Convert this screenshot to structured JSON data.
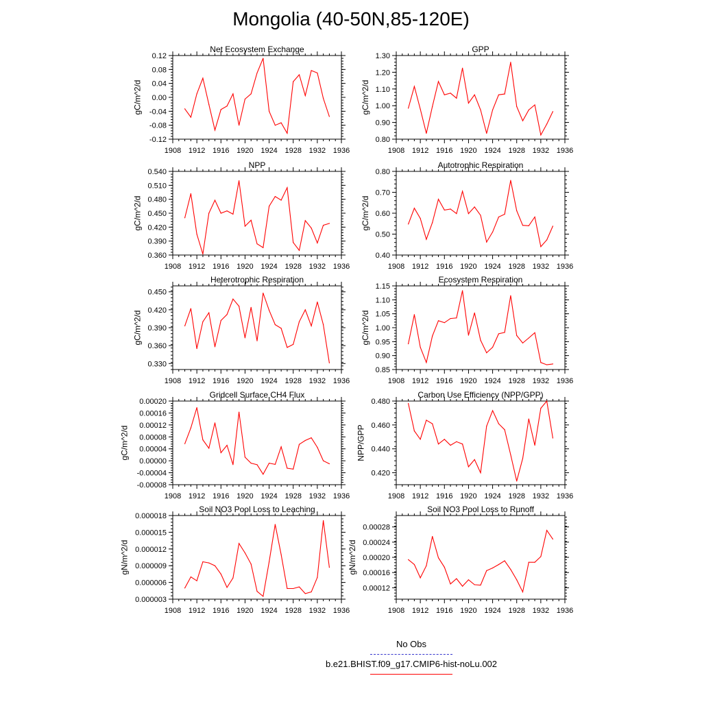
{
  "title": "Mongolia (40-50N,85-120E)",
  "colors": {
    "series": "#ff0000",
    "obs": "#3333cc",
    "axis": "#000000"
  },
  "legend": {
    "obs_label": "No Obs",
    "model_label": "b.e21.BHIST.f09_g17.CMIP6-hist-noLu.002"
  },
  "chart_data": [
    {
      "type": "line",
      "title": "Net Ecosystem Exchange",
      "ylabel": "gC/m^2/d",
      "xlim": [
        1908,
        1936
      ],
      "xticks": [
        "1908",
        "1912",
        "1916",
        "1920",
        "1924",
        "1928",
        "1932",
        "1936"
      ],
      "ylim": [
        -0.12,
        0.12
      ],
      "yticks": [
        "-0.12",
        "-0.08",
        "-0.04",
        "0.00",
        "0.04",
        "0.08",
        "0.12"
      ],
      "x": [
        1910,
        1911,
        1912,
        1913,
        1914,
        1915,
        1916,
        1917,
        1918,
        1919,
        1920,
        1921,
        1922,
        1923,
        1924,
        1925,
        1926,
        1927,
        1928,
        1929,
        1930,
        1931,
        1932,
        1933,
        1934
      ],
      "values": [
        -0.033,
        -0.057,
        0.01,
        0.055,
        -0.02,
        -0.094,
        -0.035,
        -0.025,
        0.01,
        -0.08,
        -0.005,
        0.01,
        0.07,
        0.112,
        -0.04,
        -0.08,
        -0.073,
        -0.103,
        0.045,
        0.065,
        0.005,
        0.077,
        0.07,
        -0.003,
        -0.055
      ]
    },
    {
      "type": "line",
      "title": "GPP",
      "ylabel": "gC/m^2/d",
      "xlim": [
        1908,
        1936
      ],
      "xticks": [
        "1908",
        "1912",
        "1916",
        "1920",
        "1924",
        "1928",
        "1932",
        "1936"
      ],
      "ylim": [
        0.8,
        1.3
      ],
      "yticks": [
        "0.80",
        "0.90",
        "1.00",
        "1.10",
        "1.20",
        "1.30"
      ],
      "x": [
        1910,
        1911,
        1912,
        1913,
        1914,
        1915,
        1916,
        1917,
        1918,
        1919,
        1920,
        1921,
        1922,
        1923,
        1924,
        1925,
        1926,
        1927,
        1928,
        1929,
        1930,
        1931,
        1932,
        1933,
        1934
      ],
      "values": [
        0.985,
        1.115,
        0.98,
        0.835,
        0.995,
        1.145,
        1.065,
        1.075,
        1.045,
        1.225,
        1.015,
        1.065,
        0.975,
        0.835,
        0.975,
        1.065,
        1.07,
        1.26,
        0.995,
        0.91,
        0.975,
        1.005,
        0.825,
        0.89,
        0.965
      ]
    },
    {
      "type": "line",
      "title": "NPP",
      "ylabel": "gC/m^2/d",
      "xlim": [
        1908,
        1936
      ],
      "xticks": [
        "1908",
        "1912",
        "1916",
        "1920",
        "1924",
        "1928",
        "1932",
        "1936"
      ],
      "ylim": [
        0.36,
        0.54
      ],
      "yticks": [
        "0.360",
        "0.390",
        "0.420",
        "0.450",
        "0.480",
        "0.510",
        "0.540"
      ],
      "x": [
        1910,
        1911,
        1912,
        1913,
        1914,
        1915,
        1916,
        1917,
        1918,
        1919,
        1920,
        1921,
        1922,
        1923,
        1924,
        1925,
        1926,
        1927,
        1928,
        1929,
        1930,
        1931,
        1932,
        1933,
        1934
      ],
      "values": [
        0.44,
        0.492,
        0.405,
        0.362,
        0.45,
        0.478,
        0.45,
        0.455,
        0.448,
        0.52,
        0.422,
        0.435,
        0.384,
        0.376,
        0.465,
        0.486,
        0.478,
        0.505,
        0.387,
        0.37,
        0.434,
        0.418,
        0.386,
        0.424,
        0.428
      ]
    },
    {
      "type": "line",
      "title": "Autotrophic Respiration",
      "ylabel": "gC/m^2/d",
      "xlim": [
        1908,
        1936
      ],
      "xticks": [
        "1908",
        "1912",
        "1916",
        "1920",
        "1924",
        "1928",
        "1932",
        "1936"
      ],
      "ylim": [
        0.4,
        0.8
      ],
      "yticks": [
        "0.40",
        "0.50",
        "0.60",
        "0.70",
        "0.80"
      ],
      "x": [
        1910,
        1911,
        1912,
        1913,
        1914,
        1915,
        1916,
        1917,
        1918,
        1919,
        1920,
        1921,
        1922,
        1923,
        1924,
        1925,
        1926,
        1927,
        1928,
        1929,
        1930,
        1931,
        1932,
        1933,
        1934
      ],
      "values": [
        0.548,
        0.624,
        0.575,
        0.475,
        0.555,
        0.667,
        0.615,
        0.62,
        0.598,
        0.705,
        0.598,
        0.63,
        0.59,
        0.462,
        0.51,
        0.582,
        0.595,
        0.757,
        0.612,
        0.542,
        0.54,
        0.582,
        0.44,
        0.472,
        0.538
      ]
    },
    {
      "type": "line",
      "title": "Heterotrophic Respiration",
      "ylabel": "gC/m^2/d",
      "xlim": [
        1908,
        1936
      ],
      "xticks": [
        "1908",
        "1912",
        "1916",
        "1920",
        "1924",
        "1928",
        "1932",
        "1936"
      ],
      "ylim": [
        0.32,
        0.46
      ],
      "yticks": [
        "0.330",
        "0.360",
        "0.390",
        "0.420",
        "0.450"
      ],
      "x": [
        1910,
        1911,
        1912,
        1913,
        1914,
        1915,
        1916,
        1917,
        1918,
        1919,
        1920,
        1921,
        1922,
        1923,
        1924,
        1925,
        1926,
        1927,
        1928,
        1929,
        1930,
        1931,
        1932,
        1933,
        1934
      ],
      "values": [
        0.393,
        0.422,
        0.355,
        0.4,
        0.415,
        0.358,
        0.402,
        0.412,
        0.438,
        0.426,
        0.373,
        0.424,
        0.368,
        0.448,
        0.419,
        0.395,
        0.389,
        0.357,
        0.362,
        0.4,
        0.42,
        0.393,
        0.433,
        0.395,
        0.331
      ]
    },
    {
      "type": "line",
      "title": "Ecosystem Respiration",
      "ylabel": "gC/m^2/d",
      "xlim": [
        1908,
        1936
      ],
      "xticks": [
        "1908",
        "1912",
        "1916",
        "1920",
        "1924",
        "1928",
        "1932",
        "1936"
      ],
      "ylim": [
        0.85,
        1.15
      ],
      "yticks": [
        "0.85",
        "0.90",
        "0.95",
        "1.00",
        "1.05",
        "1.10",
        "1.15"
      ],
      "x": [
        1910,
        1911,
        1912,
        1913,
        1914,
        1915,
        1916,
        1917,
        1918,
        1919,
        1920,
        1921,
        1922,
        1923,
        1924,
        1925,
        1926,
        1927,
        1928,
        1929,
        1930,
        1931,
        1932,
        1933,
        1934
      ],
      "values": [
        0.942,
        1.047,
        0.93,
        0.875,
        0.97,
        1.025,
        1.018,
        1.033,
        1.035,
        1.133,
        0.973,
        1.053,
        0.955,
        0.91,
        0.93,
        0.978,
        0.983,
        1.115,
        0.972,
        0.945,
        0.963,
        0.982,
        0.875,
        0.867,
        0.87
      ]
    },
    {
      "type": "line",
      "title": "Gridcell Surface CH4 Flux",
      "ylabel": "gC/m^2/d",
      "xlim": [
        1908,
        1936
      ],
      "xticks": [
        "1908",
        "1912",
        "1916",
        "1920",
        "1924",
        "1928",
        "1932",
        "1936"
      ],
      "ylim": [
        -8e-05,
        0.0002
      ],
      "yticks": [
        "-0.00008",
        "-0.00004",
        "0.00000",
        "0.00004",
        "0.00008",
        "0.00012",
        "0.00016",
        "0.00020"
      ],
      "x": [
        1910,
        1911,
        1912,
        1913,
        1914,
        1915,
        1916,
        1917,
        1918,
        1919,
        1920,
        1921,
        1922,
        1923,
        1924,
        1925,
        1926,
        1927,
        1928,
        1929,
        1930,
        1931,
        1932,
        1933,
        1934
      ],
      "values": [
        5.7e-05,
        0.00011,
        0.000178,
        7e-05,
        4.2e-05,
        0.000127,
        2.7e-05,
        5.2e-05,
        -1.3e-05,
        0.000163,
        1.2e-05,
        -8e-06,
        -1.3e-05,
        -4.5e-05,
        -8e-06,
        -1.2e-05,
        4.7e-05,
        -2.5e-05,
        -2.8e-05,
        5.5e-05,
        6.8e-05,
        7.7e-05,
        4.5e-05,
        0.0,
        -1e-05
      ]
    },
    {
      "type": "line",
      "title": "Carbon Use Efficiency (NPP/GPP)",
      "ylabel": "NPP/GPP",
      "xlim": [
        1908,
        1936
      ],
      "xticks": [
        "1908",
        "1912",
        "1916",
        "1920",
        "1924",
        "1928",
        "1932",
        "1936"
      ],
      "ylim": [
        0.41,
        0.48
      ],
      "yticks": [
        "0.420",
        "0.440",
        "0.460",
        "0.480"
      ],
      "x": [
        1910,
        1911,
        1912,
        1913,
        1914,
        1915,
        1916,
        1917,
        1918,
        1919,
        1920,
        1921,
        1922,
        1923,
        1924,
        1925,
        1926,
        1927,
        1928,
        1929,
        1930,
        1931,
        1932,
        1933,
        1934
      ],
      "values": [
        0.478,
        0.455,
        0.448,
        0.464,
        0.461,
        0.444,
        0.448,
        0.443,
        0.446,
        0.444,
        0.425,
        0.431,
        0.42,
        0.459,
        0.472,
        0.461,
        0.456,
        0.435,
        0.413,
        0.432,
        0.465,
        0.443,
        0.474,
        0.48,
        0.449
      ]
    },
    {
      "type": "line",
      "title": "Soil NO3 Pool Loss to Leaching",
      "ylabel": "gN/m^2/d",
      "xlim": [
        1908,
        1936
      ],
      "xticks": [
        "1908",
        "1912",
        "1916",
        "1920",
        "1924",
        "1928",
        "1932",
        "1936"
      ],
      "ylim": [
        3e-06,
        1.8e-05
      ],
      "yticks": [
        "0.000003",
        "0.000006",
        "0.000009",
        "0.000012",
        "0.000015",
        "0.000018"
      ],
      "x": [
        1910,
        1911,
        1912,
        1913,
        1914,
        1915,
        1916,
        1917,
        1918,
        1919,
        1920,
        1921,
        1922,
        1923,
        1924,
        1925,
        1926,
        1927,
        1928,
        1929,
        1930,
        1931,
        1932,
        1933,
        1934
      ],
      "values": [
        5e-06,
        7e-06,
        6.3e-06,
        9.7e-06,
        9.5e-06,
        9e-06,
        7.5e-06,
        5.1e-06,
        6.8e-06,
        1.3e-05,
        1.13e-05,
        9.3e-06,
        4.4e-06,
        3.5e-06,
        9.7e-06,
        1.64e-05,
        1.1e-05,
        4.9e-06,
        4.9e-06,
        5.2e-06,
        4e-06,
        4.3e-06,
        6.9e-06,
        1.71e-05,
        8.7e-06
      ]
    },
    {
      "type": "line",
      "title": "Soil NO3 Pool Loss to Runoff",
      "ylabel": "gN/m^2/d",
      "xlim": [
        1908,
        1936
      ],
      "xticks": [
        "1908",
        "1912",
        "1916",
        "1920",
        "1924",
        "1928",
        "1932",
        "1936"
      ],
      "ylim": [
        9e-05,
        0.00031
      ],
      "yticks": [
        "0.00012",
        "0.00016",
        "0.00020",
        "0.00024",
        "0.00028"
      ],
      "x": [
        1910,
        1911,
        1912,
        1913,
        1914,
        1915,
        1916,
        1917,
        1918,
        1919,
        1920,
        1921,
        1922,
        1923,
        1924,
        1925,
        1926,
        1927,
        1928,
        1929,
        1930,
        1931,
        1932,
        1933,
        1934
      ],
      "values": [
        0.000194,
        0.000181,
        0.000146,
        0.000178,
        0.000255,
        0.000199,
        0.000174,
        0.00013,
        0.000144,
        0.000124,
        0.000141,
        0.000128,
        0.000127,
        0.000165,
        0.000172,
        0.000181,
        0.000191,
        0.000168,
        0.000141,
        0.000109,
        0.000187,
        0.000187,
        0.000202,
        0.000271,
        0.000248
      ]
    }
  ]
}
